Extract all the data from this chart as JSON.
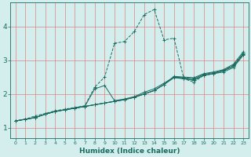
{
  "xlabel": "Humidex (Indice chaleur)",
  "bg_color": "#d4eeee",
  "line_color": "#1a6b60",
  "grid_color": "#e08080",
  "xlim": [
    -0.5,
    23.5
  ],
  "ylim": [
    0.7,
    4.7
  ],
  "yticks": [
    1,
    2,
    3,
    4
  ],
  "xticks": [
    0,
    1,
    2,
    3,
    4,
    5,
    6,
    7,
    8,
    9,
    10,
    11,
    12,
    13,
    14,
    15,
    16,
    17,
    18,
    19,
    20,
    21,
    22,
    23
  ],
  "lines": [
    {
      "x": [
        0,
        1,
        2,
        3,
        4,
        5,
        6,
        7,
        8,
        9,
        10,
        11,
        12,
        13,
        14,
        15,
        16,
        17,
        18,
        19,
        20,
        21,
        22,
        23
      ],
      "y": [
        1.2,
        1.25,
        1.35,
        1.42,
        1.5,
        1.55,
        1.6,
        1.65,
        2.2,
        2.5,
        3.5,
        3.55,
        3.85,
        4.35,
        4.5,
        3.6,
        3.65,
        2.45,
        2.35,
        2.55,
        2.6,
        2.7,
        2.85,
        3.2
      ],
      "linestyle": "--"
    },
    {
      "x": [
        0,
        1,
        2,
        3,
        4,
        5,
        6,
        7,
        8,
        9,
        10,
        11,
        12,
        13,
        14,
        15,
        16,
        17,
        18,
        19,
        20,
        21,
        22,
        23
      ],
      "y": [
        1.2,
        1.25,
        1.3,
        1.4,
        1.48,
        1.53,
        1.58,
        1.63,
        2.15,
        2.25,
        1.8,
        1.85,
        1.92,
        2.05,
        2.15,
        2.32,
        2.5,
        2.45,
        2.4,
        2.55,
        2.6,
        2.7,
        2.82,
        3.18
      ],
      "linestyle": "-"
    },
    {
      "x": [
        0,
        1,
        2,
        3,
        4,
        5,
        6,
        7,
        8,
        9,
        10,
        11,
        12,
        13,
        14,
        15,
        16,
        17,
        18,
        19,
        20,
        21,
        22,
        23
      ],
      "y": [
        1.2,
        1.25,
        1.3,
        1.4,
        1.48,
        1.53,
        1.58,
        1.63,
        1.68,
        1.73,
        1.78,
        1.83,
        1.9,
        2.0,
        2.1,
        2.28,
        2.48,
        2.45,
        2.42,
        2.55,
        2.6,
        2.65,
        2.78,
        3.15
      ],
      "linestyle": "-"
    },
    {
      "x": [
        0,
        1,
        2,
        3,
        4,
        5,
        6,
        7,
        8,
        9,
        10,
        11,
        12,
        13,
        14,
        15,
        16,
        17,
        18,
        19,
        20,
        21,
        22,
        23
      ],
      "y": [
        1.2,
        1.25,
        1.3,
        1.4,
        1.48,
        1.53,
        1.58,
        1.63,
        1.68,
        1.73,
        1.78,
        1.83,
        1.9,
        2.0,
        2.1,
        2.28,
        2.5,
        2.48,
        2.45,
        2.58,
        2.63,
        2.68,
        2.82,
        3.2
      ],
      "linestyle": "-"
    },
    {
      "x": [
        0,
        1,
        2,
        3,
        4,
        5,
        6,
        7,
        8,
        9,
        10,
        11,
        12,
        13,
        14,
        15,
        16,
        17,
        18,
        19,
        20,
        21,
        22,
        23
      ],
      "y": [
        1.2,
        1.25,
        1.3,
        1.4,
        1.48,
        1.53,
        1.58,
        1.63,
        1.68,
        1.73,
        1.78,
        1.83,
        1.9,
        2.0,
        2.1,
        2.28,
        2.52,
        2.5,
        2.48,
        2.6,
        2.65,
        2.72,
        2.88,
        3.25
      ],
      "linestyle": "-"
    }
  ]
}
